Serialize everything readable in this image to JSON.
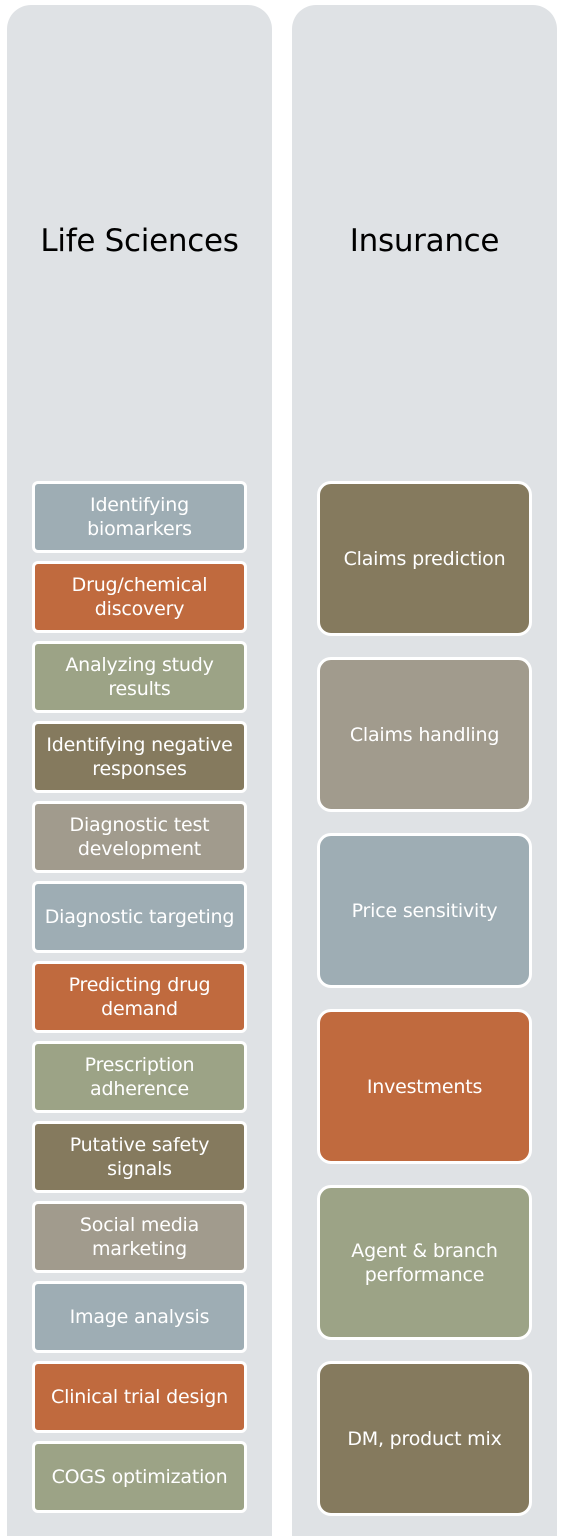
{
  "columns": [
    {
      "title": "Life Sciences",
      "items": [
        {
          "label": "Identifying biomarkers",
          "color": "#9eadb4"
        },
        {
          "label": "Drug/chemical discovery",
          "color": "#c06a3e"
        },
        {
          "label": "Analyzing study results",
          "color": "#9ca386"
        },
        {
          "label": "Identifying negative responses",
          "color": "#857a5e"
        },
        {
          "label": "Diagnostic test development",
          "color": "#a19b8d"
        },
        {
          "label": "Diagnostic targeting",
          "color": "#9eadb4"
        },
        {
          "label": "Predicting drug demand",
          "color": "#c06a3e"
        },
        {
          "label": "Prescription adherence",
          "color": "#9ca386"
        },
        {
          "label": "Putative safety signals",
          "color": "#857a5e"
        },
        {
          "label": "Social media marketing",
          "color": "#a19b8d"
        },
        {
          "label": "Image analysis",
          "color": "#9eadb4"
        },
        {
          "label": "Clinical trial design",
          "color": "#c06a3e"
        },
        {
          "label": "COGS optimization",
          "color": "#9ca386"
        }
      ]
    },
    {
      "title": "Insurance",
      "items": [
        {
          "label": "Claims prediction",
          "color": "#857a5e"
        },
        {
          "label": "Claims handling",
          "color": "#a19b8d"
        },
        {
          "label": "Price sensitivity",
          "color": "#9eadb4"
        },
        {
          "label": "Investments",
          "color": "#c06a3e"
        },
        {
          "label": "Agent & branch performance",
          "color": "#9ca386"
        },
        {
          "label": "DM, product mix",
          "color": "#857a5e"
        }
      ]
    }
  ]
}
